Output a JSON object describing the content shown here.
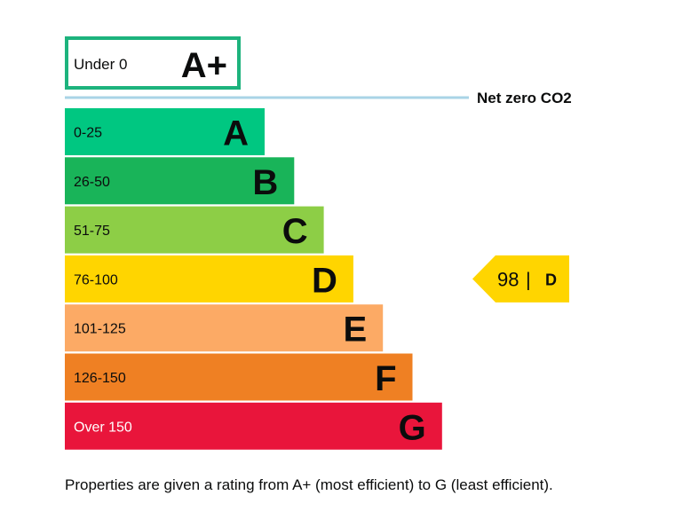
{
  "chart_data": {
    "type": "bar",
    "top_band": {
      "range": "Under 0",
      "letter": "A+",
      "color": "#1db37d"
    },
    "net_zero_label": "Net zero CO2",
    "bands": [
      {
        "range": "0-25",
        "letter": "A",
        "color": "#00c781"
      },
      {
        "range": "26-50",
        "letter": "B",
        "color": "#19b459"
      },
      {
        "range": "51-75",
        "letter": "C",
        "color": "#8dce46"
      },
      {
        "range": "76-100",
        "letter": "D",
        "color": "#ffd500"
      },
      {
        "range": "101-125",
        "letter": "E",
        "color": "#fcaa65"
      },
      {
        "range": "126-150",
        "letter": "F",
        "color": "#ef8023"
      },
      {
        "range": "Over 150",
        "letter": "G",
        "color": "#e9153b"
      }
    ],
    "current_rating": {
      "value": "98",
      "separator": "|",
      "letter": "D",
      "band_index": 3,
      "color": "#ffd500"
    }
  },
  "caption": "Properties are given a rating from A+ (most efficient) to G (least efficient)."
}
